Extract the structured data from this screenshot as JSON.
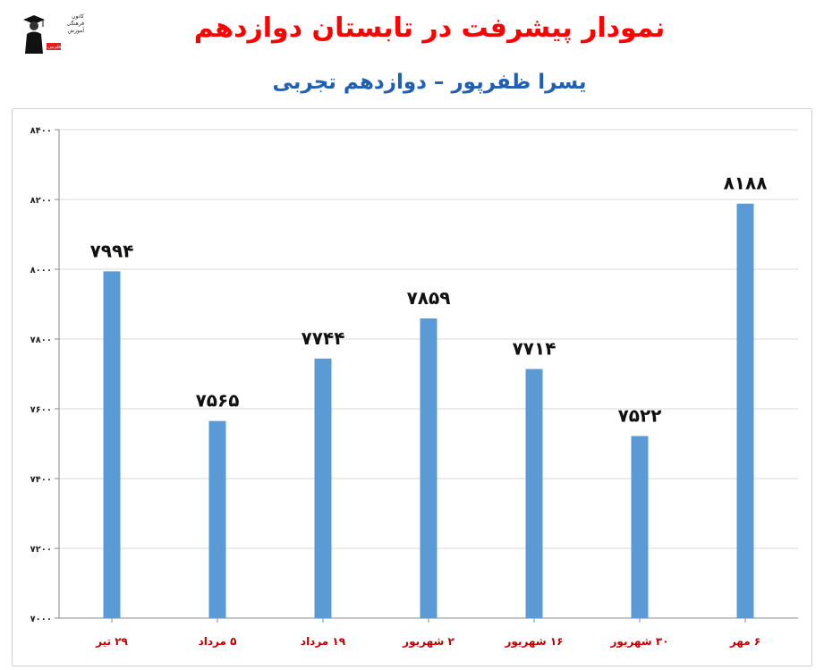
{
  "header": {
    "title": "نمودار پیشرفت در تابستان دوازدهم",
    "subtitle": "یسرا ظفرپور – دوازدهم تجربی"
  },
  "logo": {
    "line1": "کانون",
    "line2": "فرهنگی",
    "line3": "آموزش",
    "line4": "قلم‌چی"
  },
  "colors": {
    "title": "#ff0000",
    "subtitle": "#1f5fb4",
    "bar": "#5b9bd5",
    "category_label": "#c00000",
    "grid": "#d9d9d9"
  },
  "chart_data": {
    "type": "bar",
    "title": "",
    "xlabel": "",
    "ylabel": "",
    "categories": [
      "۲۹ تیر",
      "۵ مرداد",
      "۱۹ مرداد",
      "۲ شهریور",
      "۱۶ شهریور",
      "۳۰ شهریور",
      "۶ مهر"
    ],
    "values": [
      7994,
      7565,
      7744,
      7859,
      7714,
      7522,
      8188
    ],
    "value_labels": [
      "۷۹۹۴",
      "۷۵۶۵",
      "۷۷۴۴",
      "۷۸۵۹",
      "۷۷۱۴",
      "۷۵۲۲",
      "۸۱۸۸"
    ],
    "ylim": [
      7000,
      8400
    ],
    "yticks": [
      7000,
      7200,
      7400,
      7600,
      7800,
      8000,
      8200,
      8400
    ],
    "ytick_labels": [
      "۷۰۰۰",
      "۷۲۰۰",
      "۷۴۰۰",
      "۷۶۰۰",
      "۷۸۰۰",
      "۸۰۰۰",
      "۸۲۰۰",
      "۸۴۰۰"
    ],
    "grid": true,
    "legend": "none"
  }
}
